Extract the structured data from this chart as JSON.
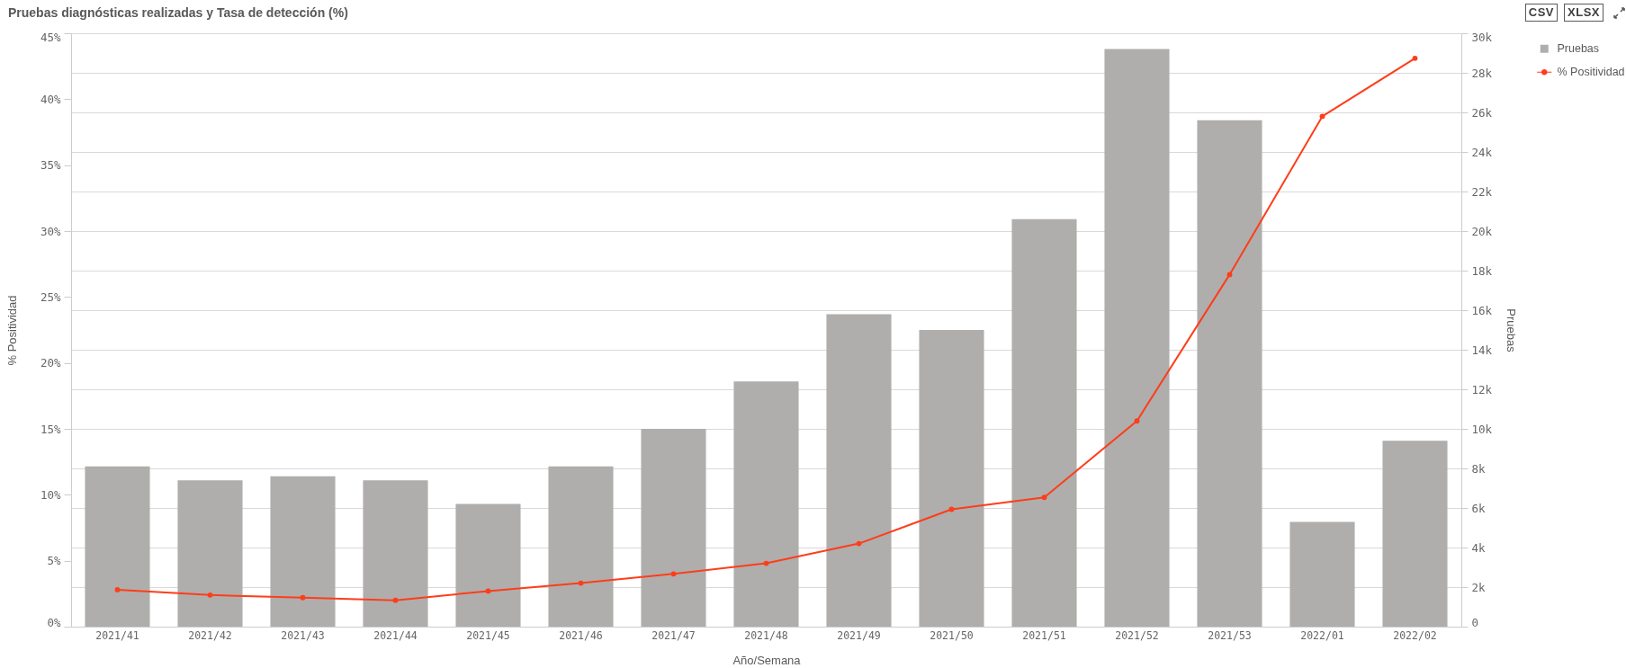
{
  "chart_data": {
    "type": "bar",
    "title": "Pruebas diagnósticas realizadas y Tasa de detección (%)",
    "xlabel": "Año/Semana",
    "ylabel": "% Positividad",
    "y2label": "Pruebas",
    "categories": [
      "2021/41",
      "2021/42",
      "2021/43",
      "2021/44",
      "2021/45",
      "2021/46",
      "2021/47",
      "2021/48",
      "2021/49",
      "2021/50",
      "2021/51",
      "2021/52",
      "2021/53",
      "2022/01",
      "2022/02"
    ],
    "series": [
      {
        "name": "Pruebas",
        "axis": "y2",
        "color": "#afaeac",
        "values": [
          8100,
          7400,
          7600,
          7400,
          6200,
          8100,
          10000,
          12400,
          15800,
          15000,
          20600,
          29200,
          25600,
          5300,
          9400
        ]
      },
      {
        "name": "% Positividad",
        "type": "line",
        "color": "#ff3d1a",
        "values": [
          2.8,
          2.4,
          2.2,
          2.0,
          2.7,
          3.3,
          4.0,
          4.8,
          6.3,
          8.9,
          9.8,
          15.6,
          26.7,
          38.7,
          43.1
        ]
      }
    ],
    "ylim": [
      0,
      45
    ],
    "yticks": [
      {
        "value": 0,
        "label": "0%"
      },
      {
        "value": 5,
        "label": "5%"
      },
      {
        "value": 10,
        "label": "10%"
      },
      {
        "value": 15,
        "label": "15%"
      },
      {
        "value": 20,
        "label": "20%"
      },
      {
        "value": 25,
        "label": "25%"
      },
      {
        "value": 30,
        "label": "30%"
      },
      {
        "value": 35,
        "label": "35%"
      },
      {
        "value": 40,
        "label": "40%"
      },
      {
        "value": 45,
        "label": "45%"
      }
    ],
    "y2lim": [
      0,
      30000
    ],
    "y2ticks": [
      0,
      {
        "value": 2000,
        "label": "2k"
      },
      {
        "value": 4000,
        "label": "4k"
      },
      {
        "value": 6000,
        "label": "6k"
      },
      {
        "value": 8000,
        "label": "8k"
      },
      {
        "value": 10000,
        "label": "10k"
      },
      {
        "value": 12000,
        "label": "12k"
      },
      {
        "value": 14000,
        "label": "14k"
      },
      {
        "value": 16000,
        "label": "16k"
      },
      {
        "value": 18000,
        "label": "18k"
      },
      {
        "value": 20000,
        "label": "20k"
      },
      {
        "value": 22000,
        "label": "22k"
      },
      {
        "value": 24000,
        "label": "24k"
      },
      {
        "value": 26000,
        "label": "26k"
      },
      {
        "value": 28000,
        "label": "28k"
      },
      {
        "value": 30000,
        "label": "30k"
      }
    ],
    "grid": "y2",
    "legend": "top right",
    "marker": "circle",
    "line_style": "solid",
    "annotations": [
      "CSV",
      "XLSX"
    ]
  }
}
